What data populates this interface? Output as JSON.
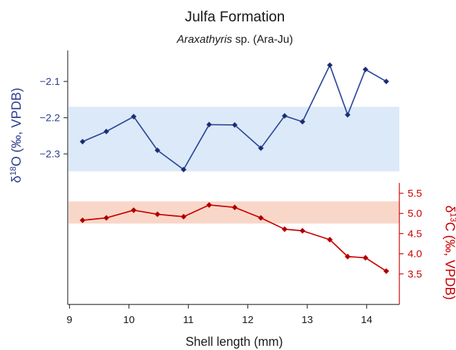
{
  "chart_data": {
    "type": "line",
    "title": "Julfa Formation",
    "subtitle_italic": "Araxathyris",
    "subtitle_rest": " sp. (Ara-Ju)",
    "xlabel": "Shell length (mm)",
    "xlim": [
      8.97,
      14.55
    ],
    "x_ticks": [
      "9",
      "10",
      "11",
      "12",
      "13",
      "14"
    ],
    "left_axis": {
      "label_prefix": "δ",
      "label_sup": "18",
      "label_rest": "O (‰, VPDB)",
      "ticks": [
        "−2.1",
        "−2.2",
        "−2.3"
      ],
      "color": "#2e3f8f"
    },
    "right_axis": {
      "label_prefix": "δ",
      "label_sup": "13",
      "label_rest": "C (‰, VPDB)",
      "ticks": [
        "5.5",
        "5.0",
        "4.5",
        "4.0",
        "3.5"
      ],
      "color": "#cc0000"
    },
    "series": [
      {
        "axis": "left",
        "color": "#2e4a9a",
        "band": [
          -2.348,
          -2.17
        ],
        "band_color": "#dce9f8",
        "x": [
          9.22,
          9.62,
          10.08,
          10.48,
          10.92,
          11.35,
          11.78,
          12.22,
          12.62,
          12.92,
          13.38,
          13.68,
          13.98,
          14.33
        ],
        "y": [
          -2.266,
          -2.238,
          -2.197,
          -2.29,
          -2.343,
          -2.219,
          -2.22,
          -2.284,
          -2.195,
          -2.211,
          -2.055,
          -2.192,
          -2.067,
          -2.1
        ]
      },
      {
        "axis": "right",
        "color": "#cc0000",
        "band": [
          4.75,
          5.3
        ],
        "band_color": "#f8d7c9",
        "x": [
          9.22,
          9.62,
          10.08,
          10.48,
          10.92,
          11.35,
          11.78,
          12.22,
          12.62,
          12.92,
          13.38,
          13.68,
          13.98,
          14.33
        ],
        "y": [
          4.83,
          4.89,
          5.08,
          4.98,
          4.92,
          5.21,
          5.15,
          4.89,
          4.61,
          4.57,
          4.35,
          3.93,
          3.9,
          3.57
        ]
      }
    ]
  }
}
